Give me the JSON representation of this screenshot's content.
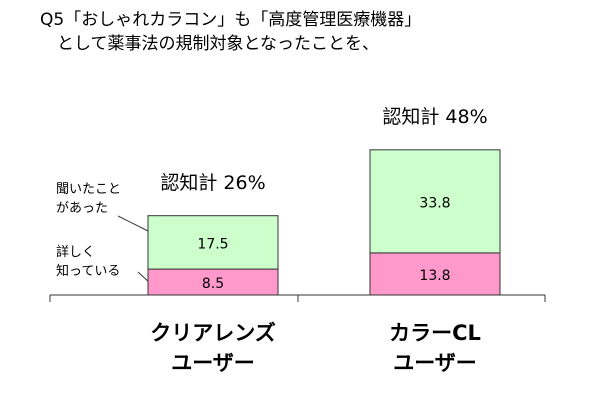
{
  "chart_data": {
    "type": "stacked-bar",
    "title": "Q5「おしゃれカラコン」も「高度管理医療機器」\n　として薬事法の規制対象となったことを、",
    "categories": [
      "クリアレンズ\nユーザー",
      "カラーCL\nユーザー"
    ],
    "series": [
      {
        "name": "詳しく\n知っている",
        "color": "#ff99cc",
        "values": [
          8.5,
          13.8
        ]
      },
      {
        "name": "聞いたこと\nがあった",
        "color": "#ccffcc",
        "values": [
          17.5,
          33.8
        ]
      }
    ],
    "annotations": [
      "認知計 26%",
      "認知計 48%"
    ]
  }
}
